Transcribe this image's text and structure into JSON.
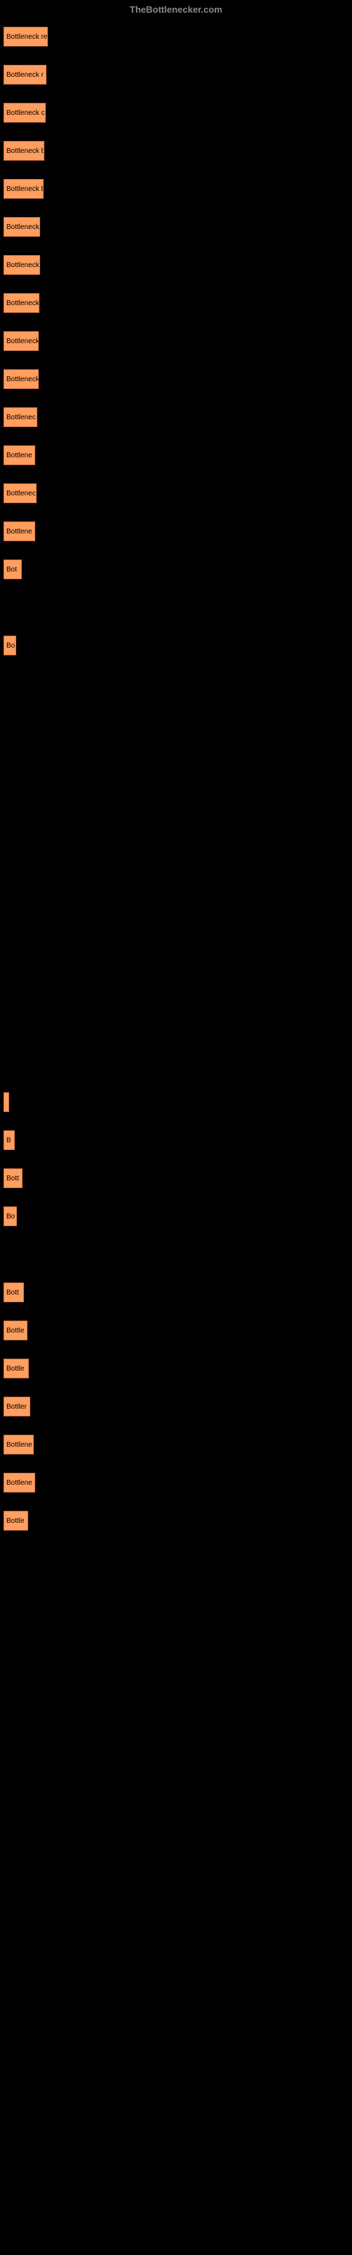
{
  "header": {
    "site": "TheBottlenecker.com"
  },
  "chart": {
    "bar_color": "#ff9e5e",
    "bar_border_color": "#cc7040",
    "background_color": "#000000",
    "bars": [
      {
        "label": "Bottleneck re",
        "width": 58
      },
      {
        "label": "Bottleneck r",
        "width": 56
      },
      {
        "label": "Bottleneck c",
        "width": 55
      },
      {
        "label": "Bottleneck b",
        "width": 53
      },
      {
        "label": "Bottleneck b",
        "width": 52
      },
      {
        "label": "Bottleneck",
        "width": 47
      },
      {
        "label": "Bottleneck",
        "width": 47
      },
      {
        "label": "Bottleneck",
        "width": 46
      },
      {
        "label": "Bottleneck",
        "width": 45
      },
      {
        "label": "Bottleneck",
        "width": 45
      },
      {
        "label": "Bottlenec",
        "width": 43
      },
      {
        "label": "Bottlene",
        "width": 40
      },
      {
        "label": "Bottlenec",
        "width": 42
      },
      {
        "label": "Bottlene",
        "width": 40
      },
      {
        "label": "Bot",
        "width": 21
      },
      {
        "label": "",
        "width": 0
      },
      {
        "label": "Bo",
        "width": 13
      },
      {
        "label": "",
        "width": 0
      },
      {
        "label": "",
        "width": 0
      },
      {
        "label": "",
        "width": 0
      },
      {
        "label": "",
        "width": 0
      },
      {
        "label": "",
        "width": 0
      },
      {
        "label": "",
        "width": 0
      },
      {
        "label": "",
        "width": 0
      },
      {
        "label": "",
        "width": 0
      },
      {
        "label": "",
        "width": 0
      },
      {
        "label": "",
        "width": 0
      },
      {
        "label": "",
        "width": 0
      },
      {
        "label": "",
        "width": 3
      },
      {
        "label": "B",
        "width": 11
      },
      {
        "label": "Bott",
        "width": 22
      },
      {
        "label": "Bo",
        "width": 14
      },
      {
        "label": "",
        "width": 0
      },
      {
        "label": "Bott",
        "width": 24
      },
      {
        "label": "Bottle",
        "width": 29
      },
      {
        "label": "Bottle",
        "width": 31
      },
      {
        "label": "Bottler",
        "width": 33
      },
      {
        "label": "Bottlene",
        "width": 38
      },
      {
        "label": "Bottlene",
        "width": 40
      },
      {
        "label": "Bottle",
        "width": 30
      }
    ]
  }
}
